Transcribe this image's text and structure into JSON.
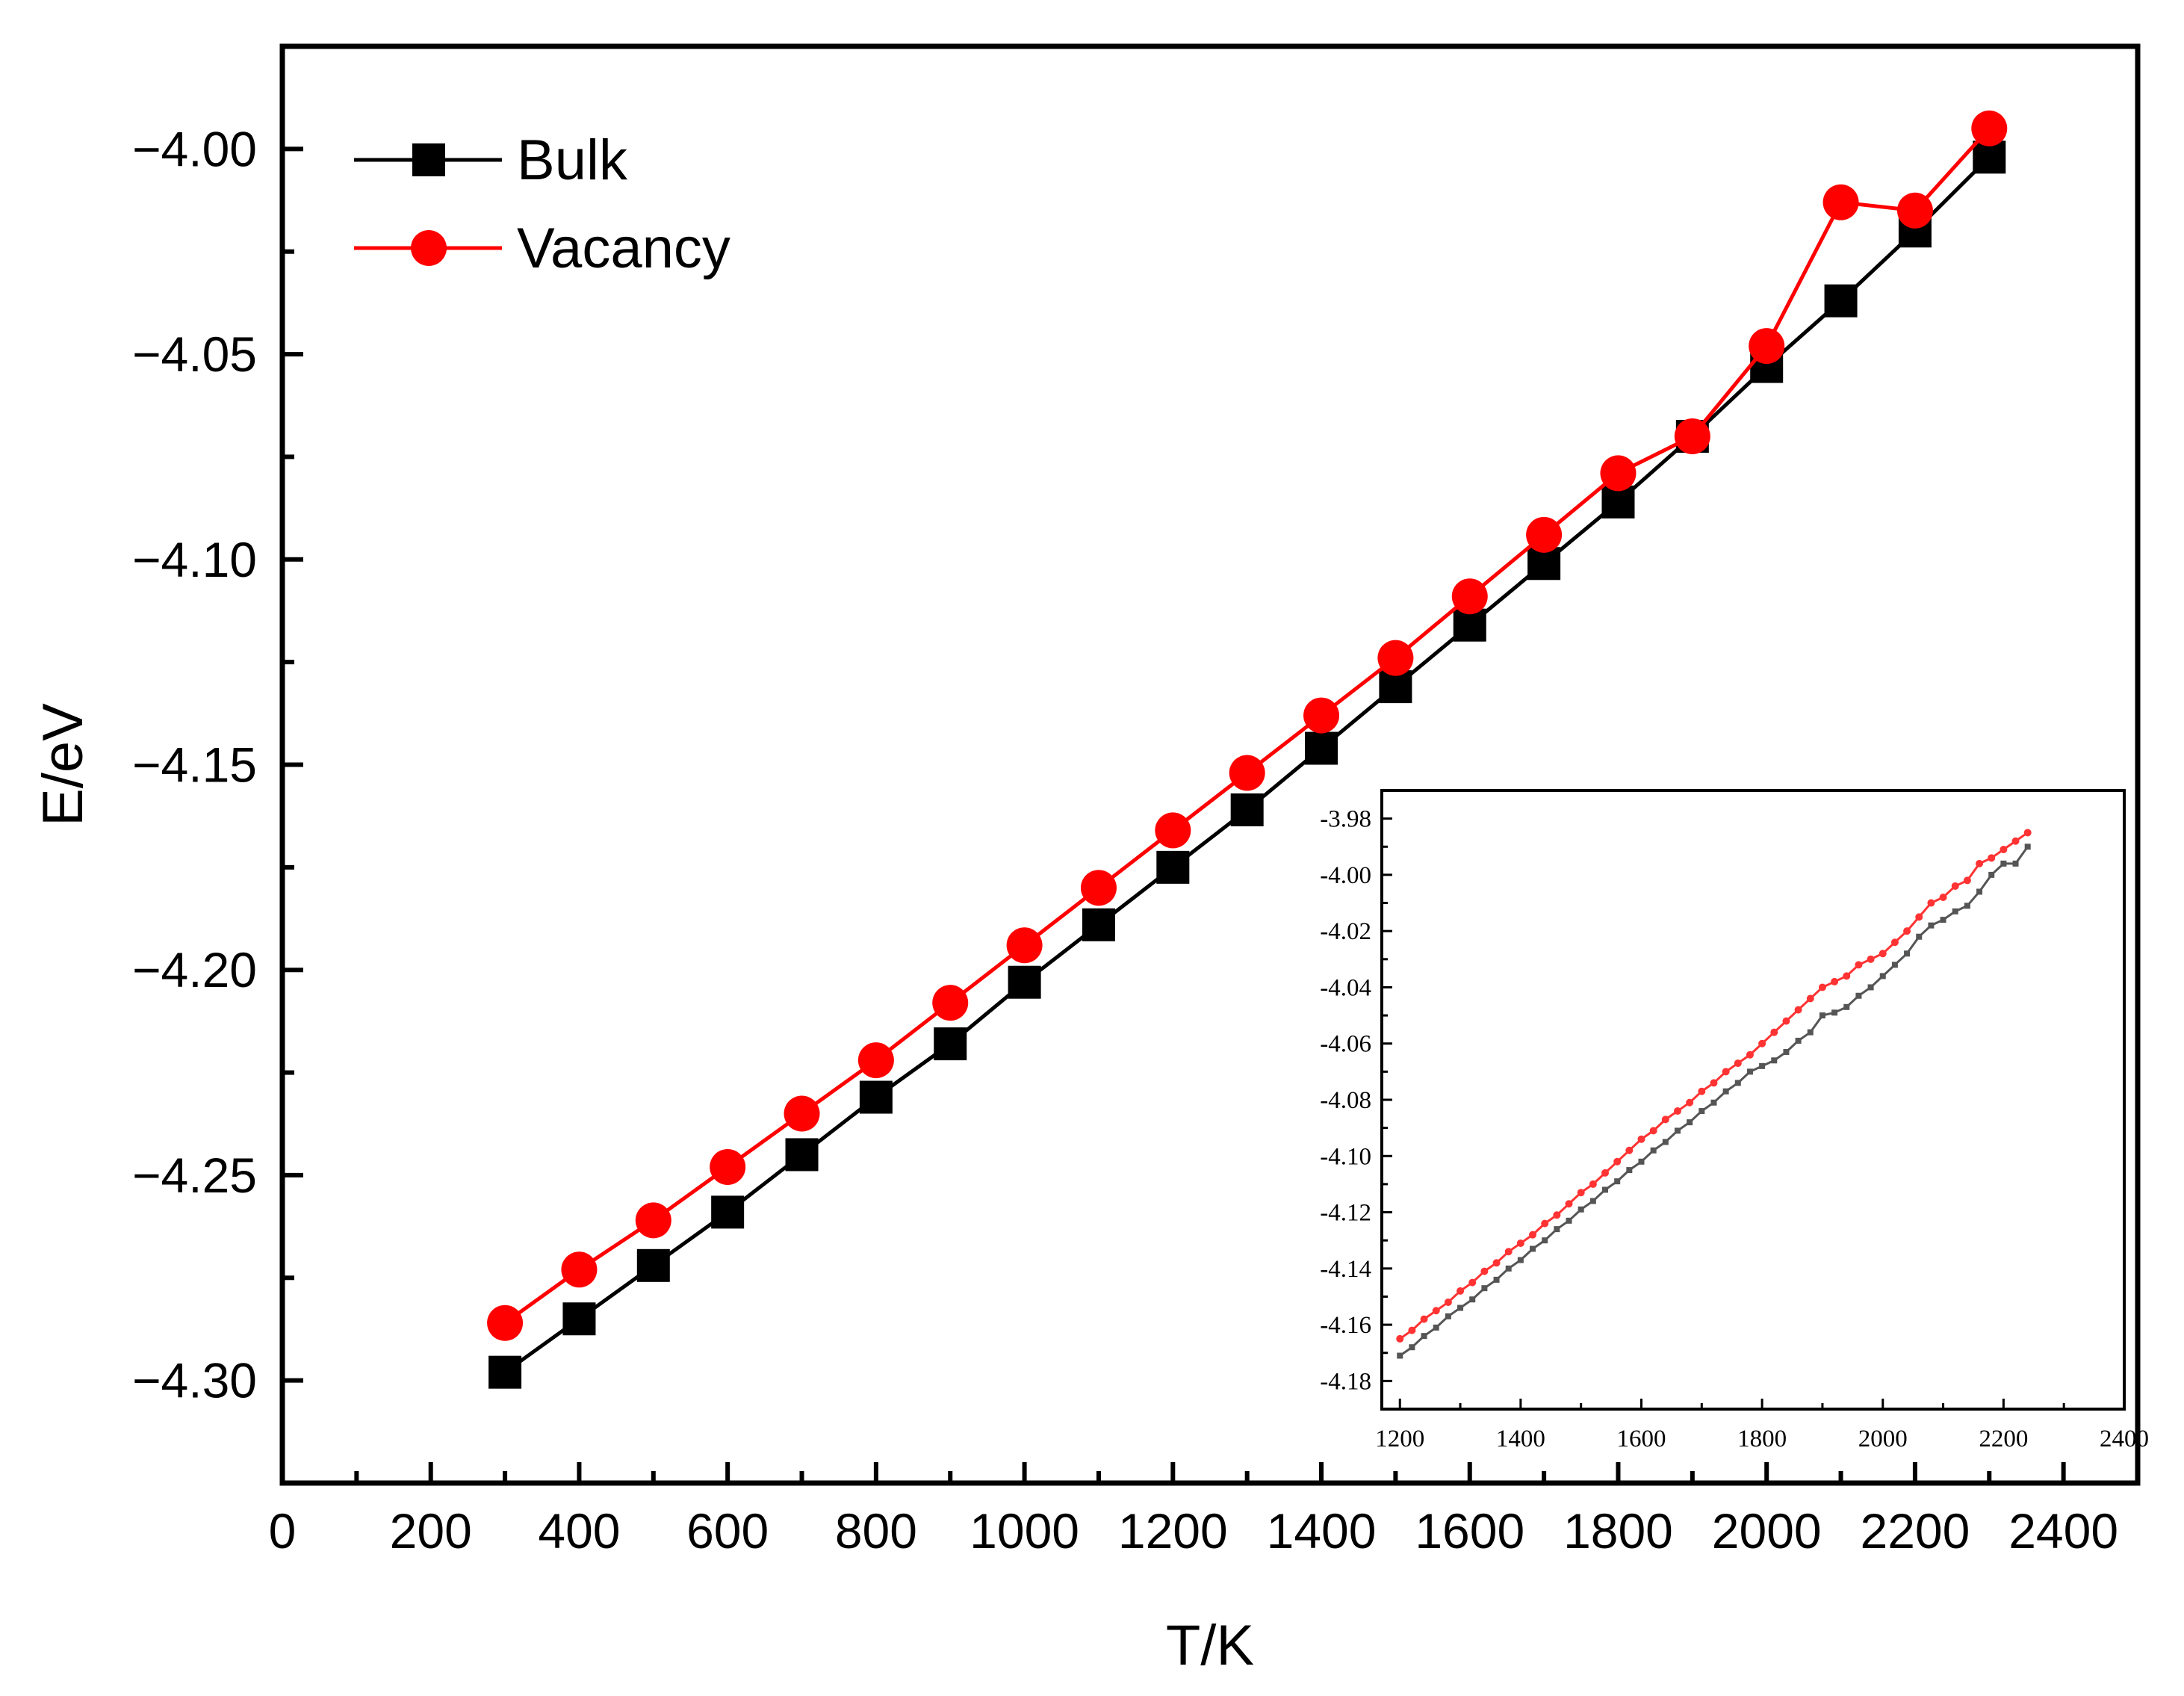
{
  "chart_data": [
    {
      "id": "main",
      "type": "line",
      "title": "",
      "xlabel": "T/K",
      "ylabel": "E/eV",
      "xlim": [
        0,
        2500
      ],
      "ylim": [
        -4.325,
        -3.975
      ],
      "x_ticks": [
        0,
        200,
        400,
        600,
        800,
        1000,
        1200,
        1400,
        1600,
        1800,
        2000,
        2200,
        2400
      ],
      "x_tick_labels": [
        "0",
        "200",
        "400",
        "600",
        "800",
        "1000",
        "1200",
        "1400",
        "1600",
        "1800",
        "2000",
        "2200",
        "2400"
      ],
      "y_ticks": [
        -4.3,
        -4.25,
        -4.2,
        -4.15,
        -4.1,
        -4.05,
        -4.0
      ],
      "y_tick_labels": [
        "−4.30",
        "−4.25",
        "−4.20",
        "−4.15",
        "−4.10",
        "−4.05",
        "−4.00"
      ],
      "legend_position": "top-left",
      "x": [
        300,
        400,
        500,
        600,
        700,
        800,
        900,
        1000,
        1100,
        1200,
        1300,
        1400,
        1500,
        1600,
        1700,
        1800,
        1900,
        2000,
        2100,
        2200,
        2300
      ],
      "series": [
        {
          "name": "Bulk",
          "color": "#000000",
          "marker": "square",
          "values": [
            -4.298,
            -4.285,
            -4.272,
            -4.259,
            -4.245,
            -4.231,
            -4.218,
            -4.203,
            -4.189,
            -4.175,
            -4.161,
            -4.146,
            -4.131,
            -4.116,
            -4.101,
            -4.086,
            -4.07,
            -4.053,
            -4.037,
            -4.02,
            -4.002
          ]
        },
        {
          "name": "Vacancy",
          "color": "#ff0000",
          "marker": "circle",
          "values": [
            -4.286,
            -4.273,
            -4.261,
            -4.248,
            -4.235,
            -4.222,
            -4.208,
            -4.194,
            -4.18,
            -4.166,
            -4.152,
            -4.138,
            -4.124,
            -4.109,
            -4.094,
            -4.079,
            -4.07,
            -4.048,
            -4.013,
            -4.015,
            -3.995
          ]
        }
      ]
    },
    {
      "id": "inset",
      "type": "line",
      "title": "",
      "xlabel": "",
      "ylabel": "",
      "xlim": [
        1170,
        2400
      ],
      "ylim": [
        -4.19,
        -3.97
      ],
      "x_ticks": [
        1200,
        1400,
        1600,
        1800,
        2000,
        2200,
        2400
      ],
      "x_tick_labels": [
        "1200",
        "1400",
        "1600",
        "1800",
        "2000",
        "2200",
        "2400"
      ],
      "y_ticks": [
        -4.18,
        -4.16,
        -4.14,
        -4.12,
        -4.1,
        -4.08,
        -4.06,
        -4.04,
        -4.02,
        -4.0,
        -3.98
      ],
      "y_tick_labels": [
        "-4.18",
        "-4.16",
        "-4.14",
        "-4.12",
        "-4.10",
        "-4.08",
        "-4.06",
        "-4.04",
        "-4.02",
        "-4.00",
        "-3.98"
      ],
      "x_start": 1200,
      "x_step": 20,
      "series": [
        {
          "name": "Bulk",
          "color": "#555555",
          "marker": "square",
          "values": [
            -4.171,
            -4.168,
            -4.164,
            -4.161,
            -4.157,
            -4.154,
            -4.151,
            -4.147,
            -4.144,
            -4.14,
            -4.137,
            -4.133,
            -4.13,
            -4.126,
            -4.123,
            -4.119,
            -4.116,
            -4.112,
            -4.109,
            -4.105,
            -4.102,
            -4.098,
            -4.095,
            -4.091,
            -4.088,
            -4.084,
            -4.081,
            -4.077,
            -4.074,
            -4.07,
            -4.068,
            -4.066,
            -4.063,
            -4.059,
            -4.056,
            -4.05,
            -4.049,
            -4.047,
            -4.043,
            -4.04,
            -4.036,
            -4.032,
            -4.028,
            -4.022,
            -4.018,
            -4.016,
            -4.013,
            -4.011,
            -4.006,
            -4.0,
            -3.996,
            -3.996,
            -3.99
          ]
        },
        {
          "name": "Vacancy",
          "color": "#ff3333",
          "marker": "circle",
          "values": [
            -4.165,
            -4.162,
            -4.158,
            -4.155,
            -4.152,
            -4.148,
            -4.145,
            -4.141,
            -4.138,
            -4.134,
            -4.131,
            -4.128,
            -4.124,
            -4.121,
            -4.117,
            -4.113,
            -4.11,
            -4.106,
            -4.102,
            -4.098,
            -4.094,
            -4.091,
            -4.087,
            -4.084,
            -4.081,
            -4.077,
            -4.074,
            -4.07,
            -4.067,
            -4.064,
            -4.06,
            -4.056,
            -4.052,
            -4.048,
            -4.044,
            -4.04,
            -4.038,
            -4.036,
            -4.032,
            -4.03,
            -4.028,
            -4.024,
            -4.02,
            -4.015,
            -4.01,
            -4.008,
            -4.004,
            -4.002,
            -3.996,
            -3.994,
            -3.991,
            -3.988,
            -3.985
          ]
        }
      ]
    }
  ]
}
